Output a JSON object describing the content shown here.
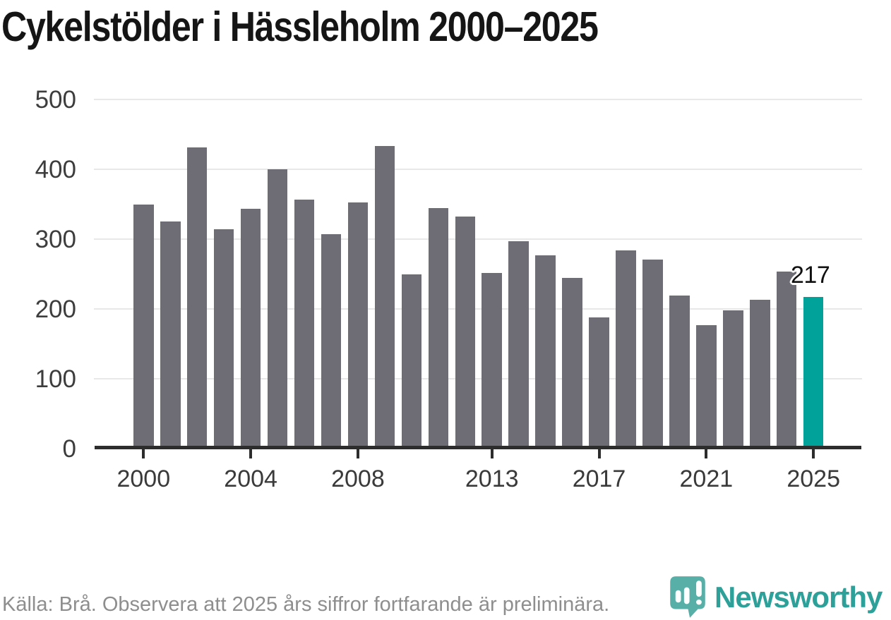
{
  "page": {
    "title": "Cykelstölder i Hässleholm 2000–2025"
  },
  "chart_data": {
    "type": "bar",
    "title": "Cykelstölder i Hässleholm 2000–2025",
    "categories": [
      2000,
      2001,
      2002,
      2003,
      2004,
      2005,
      2006,
      2007,
      2008,
      2009,
      2010,
      2011,
      2012,
      2013,
      2014,
      2015,
      2016,
      2017,
      2018,
      2019,
      2020,
      2021,
      2022,
      2023,
      2024,
      2025
    ],
    "values": [
      350,
      325,
      431,
      314,
      343,
      400,
      357,
      307,
      353,
      433,
      250,
      344,
      332,
      252,
      297,
      277,
      244,
      188,
      284,
      271,
      219,
      177,
      198,
      213,
      254,
      217
    ],
    "highlight_index": 25,
    "highlight_value_label": "217",
    "ylim": [
      0,
      500
    ],
    "yticks": [
      0,
      100,
      200,
      300,
      400,
      500
    ],
    "xtick_labels": [
      "2000",
      "2004",
      "2008",
      "2013",
      "2017",
      "2021",
      "2025"
    ],
    "xtick_indices": [
      0,
      4,
      8,
      13,
      17,
      21,
      25
    ],
    "grid": true,
    "legend": false,
    "xlabel": "",
    "ylabel": "",
    "bar_color": "#6e6d75",
    "highlight_color": "#00a29a",
    "axis_color": "#2d2d2d",
    "grid_color": "#e8e8e8"
  },
  "footer": {
    "source_text": "Källa: Brå. Observera att 2025 års siffror fortfarande är preliminära.",
    "logo_text": "Newsworthy",
    "logo_icon_color": "#4aa9a1",
    "logo_text_color": "#2da099"
  }
}
